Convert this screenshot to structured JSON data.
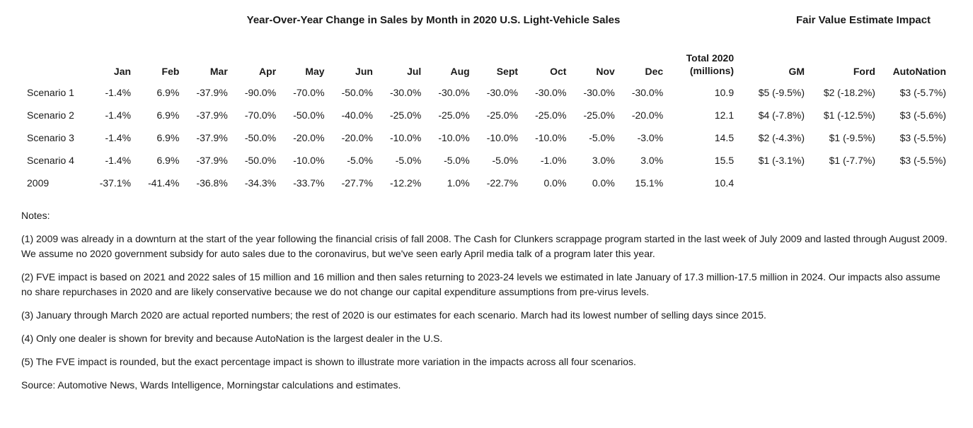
{
  "titles": {
    "left": "Year-Over-Year Change in Sales by Month in 2020 U.S. Light-Vehicle Sales",
    "right": "Fair Value Estimate Impact"
  },
  "headers": {
    "label": "",
    "months": [
      "Jan",
      "Feb",
      "Mar",
      "Apr",
      "May",
      "Jun",
      "Jul",
      "Aug",
      "Sept",
      "Oct",
      "Nov",
      "Dec"
    ],
    "total_line1": "Total 2020",
    "total_line2": "(millions)",
    "fve": [
      "GM",
      "Ford",
      "AutoNation"
    ]
  },
  "rows": [
    {
      "label": "Scenario 1",
      "months": [
        "-1.4%",
        "6.9%",
        "-37.9%",
        "-90.0%",
        "-70.0%",
        "-50.0%",
        "-30.0%",
        "-30.0%",
        "-30.0%",
        "-30.0%",
        "-30.0%",
        "-30.0%"
      ],
      "total": "10.9",
      "fve": [
        "$5 (-9.5%)",
        "$2 (-18.2%)",
        "$3 (-5.7%)"
      ]
    },
    {
      "label": "Scenario 2",
      "months": [
        "-1.4%",
        "6.9%",
        "-37.9%",
        "-70.0%",
        "-50.0%",
        "-40.0%",
        "-25.0%",
        "-25.0%",
        "-25.0%",
        "-25.0%",
        "-25.0%",
        "-20.0%"
      ],
      "total": "12.1",
      "fve": [
        "$4 (-7.8%)",
        "$1 (-12.5%)",
        "$3 (-5.6%)"
      ]
    },
    {
      "label": "Scenario 3",
      "months": [
        "-1.4%",
        "6.9%",
        "-37.9%",
        "-50.0%",
        "-20.0%",
        "-20.0%",
        "-10.0%",
        "-10.0%",
        "-10.0%",
        "-10.0%",
        "-5.0%",
        "-3.0%"
      ],
      "total": "14.5",
      "fve": [
        "$2 (-4.3%)",
        "$1 (-9.5%)",
        "$3 (-5.5%)"
      ]
    },
    {
      "label": "Scenario 4",
      "months": [
        "-1.4%",
        "6.9%",
        "-37.9%",
        "-50.0%",
        "-10.0%",
        "-5.0%",
        "-5.0%",
        "-5.0%",
        "-5.0%",
        "-1.0%",
        "3.0%",
        "3.0%"
      ],
      "total": "15.5",
      "fve": [
        "$1 (-3.1%)",
        "$1 (-7.7%)",
        "$3 (-5.5%)"
      ]
    },
    {
      "label": "2009",
      "months": [
        "-37.1%",
        "-41.4%",
        "-36.8%",
        "-34.3%",
        "-33.7%",
        "-27.7%",
        "-12.2%",
        "1.0%",
        "-22.7%",
        "0.0%",
        "0.0%",
        "15.1%"
      ],
      "total": "10.4",
      "fve": [
        "",
        "",
        ""
      ]
    }
  ],
  "notes": {
    "label": "Notes:",
    "items": [
      "(1) 2009 was already in a downturn at the start of the year following the financial crisis of fall 2008. The Cash for Clunkers scrappage program started in the last week of July 2009 and lasted through August 2009. We assume no 2020 government subsidy for auto sales due to the coronavirus, but we've seen early April media talk of a program later this year.",
      "(2) FVE impact is based on 2021 and 2022 sales of 15 million and 16 million and then sales returning to 2023-24 levels we estimated in late January of 17.3 million-17.5 million in 2024. Our impacts also assume no share repurchases in 2020 and are likely conservative because we do not change our capital expenditure assumptions from pre-virus levels.",
      "(3) January through March 2020 are actual reported numbers; the rest of 2020 is our estimates for each scenario. March had its lowest number of selling days since 2015.",
      "(4) Only one dealer is shown for brevity and because AutoNation is the largest dealer in the U.S.",
      "(5) The FVE impact is rounded, but the exact percentage impact is shown to illustrate more variation in the impacts across all four scenarios."
    ],
    "source": "Source: Automotive News, Wards Intelligence, Morningstar calculations and estimates."
  }
}
